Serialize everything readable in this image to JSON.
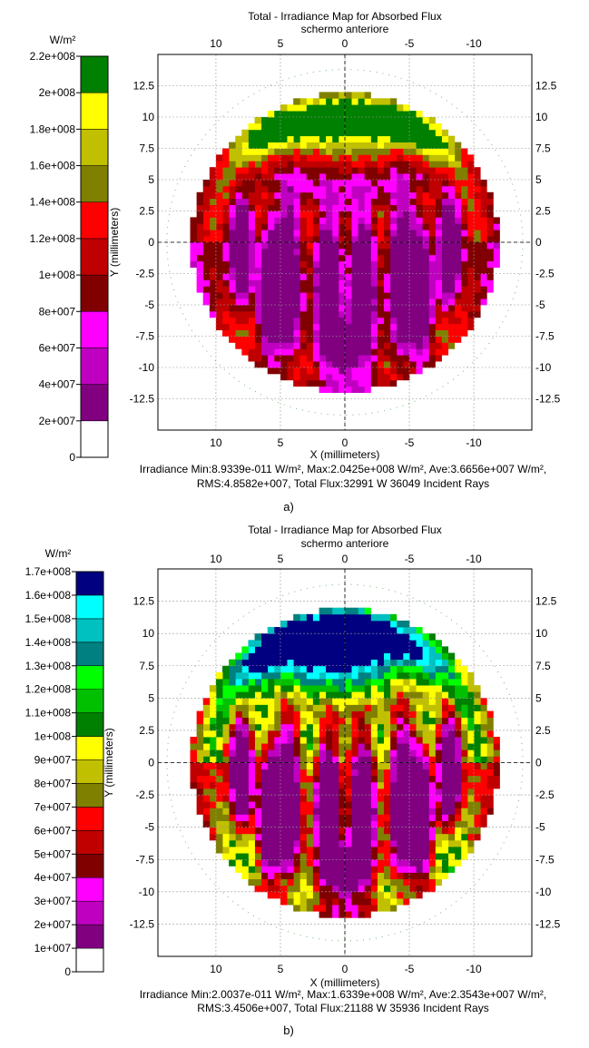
{
  "colorbar_unit": "W/m²",
  "caption_marks": [
    "a)",
    "b)"
  ],
  "chart_data": [
    {
      "type": "heatmap",
      "title": "Total - Irradiance Map for Absorbed Flux",
      "subtitle": "schermo anteriore",
      "xlabel": "X (millimeters)",
      "ylabel": "Y (millimeters)",
      "xlim": [
        14.5,
        -14.5
      ],
      "ylim": [
        -15,
        15
      ],
      "xticks_bottom": [
        10,
        5,
        0,
        -5,
        -10
      ],
      "xticks_top": [
        10,
        5,
        0,
        -5,
        -10
      ],
      "yticks": [
        12.5,
        10,
        7.5,
        5,
        2.5,
        0,
        -2.5,
        -5,
        -7.5,
        -10,
        -12.5
      ],
      "grid": true,
      "colorbar": {
        "unit": "W/m²",
        "tick_values": [
          0,
          20000000.0,
          40000000.0,
          60000000.0,
          80000000.0,
          100000000.0,
          120000000.0,
          140000000.0,
          160000000.0,
          180000000.0,
          200000000.0,
          220000000.0
        ],
        "tick_labels": [
          "0",
          "2e+007",
          "4e+007",
          "6e+007",
          "8e+007",
          "1e+008",
          "1.2e+008",
          "1.4e+008",
          "1.6e+008",
          "1.8e+008",
          "2e+008",
          "2.2e+008"
        ],
        "min": 0,
        "max": 220000000.0,
        "colors": [
          "#ffffff",
          "#800080",
          "#c000c0",
          "#ff00ff",
          "#800000",
          "#c00000",
          "#ff0000",
          "#808000",
          "#c0c000",
          "#ffff00",
          "#008000"
        ]
      },
      "stats_lines": [
        "Irradiance Min:8.9339e-011 W/m², Max:2.0425e+008 W/m², Ave:3.6656e+007 W/m²,",
        "RMS:4.8582e+007, Total Flux:32991 W 36049 Incident Rays"
      ],
      "caption": "a)"
    },
    {
      "type": "heatmap",
      "title": "Total - Irradiance Map for Absorbed Flux",
      "subtitle": "schermo anteriore",
      "xlabel": "X (millimeters)",
      "ylabel": "Y (millimeters)",
      "xlim": [
        14.5,
        -14.5
      ],
      "ylim": [
        -15,
        15
      ],
      "xticks_bottom": [
        10,
        5,
        0,
        -5,
        -10
      ],
      "xticks_top": [
        10,
        5,
        0,
        -5,
        -10
      ],
      "yticks": [
        12.5,
        10,
        7.5,
        5,
        2.5,
        0,
        -2.5,
        -5,
        -7.5,
        -10,
        -12.5
      ],
      "grid": true,
      "colorbar": {
        "unit": "W/m²",
        "tick_values": [
          10000000.0,
          20000000.0,
          30000000.0,
          40000000.0,
          50000000.0,
          60000000.0,
          70000000.0,
          80000000.0,
          90000000.0,
          100000000.0,
          110000000.0,
          120000000.0,
          130000000.0,
          140000000.0,
          150000000.0,
          160000000.0,
          170000000.0
        ],
        "tick_labels": [
          "1e+007",
          "2e+007",
          "3e+007",
          "4e+007",
          "5e+007",
          "6e+007",
          "7e+007",
          "8e+007",
          "9e+007",
          "1e+008",
          "1.1e+008",
          "1.2e+008",
          "1.3e+008",
          "1.4e+008",
          "1.5e+008",
          "1.6e+008",
          "1.7e+008"
        ],
        "bottom_label": "0",
        "min": 0,
        "max": 170000000.0,
        "colors": [
          "#ffffff",
          "#800080",
          "#c000c0",
          "#ff00ff",
          "#800000",
          "#c00000",
          "#ff0000",
          "#808000",
          "#c0c000",
          "#ffff00",
          "#008000",
          "#00c000",
          "#00ff00",
          "#008080",
          "#00c0c0",
          "#00ffff",
          "#000080"
        ]
      },
      "stats_lines": [
        "Irradiance Min:2.0037e-011 W/m², Max:1.6339e+008 W/m², Ave:2.3543e+007 W/m²,",
        "RMS:3.4506e+007, Total Flux:21188 W 35936 Incident Rays"
      ],
      "caption": "b)"
    }
  ]
}
